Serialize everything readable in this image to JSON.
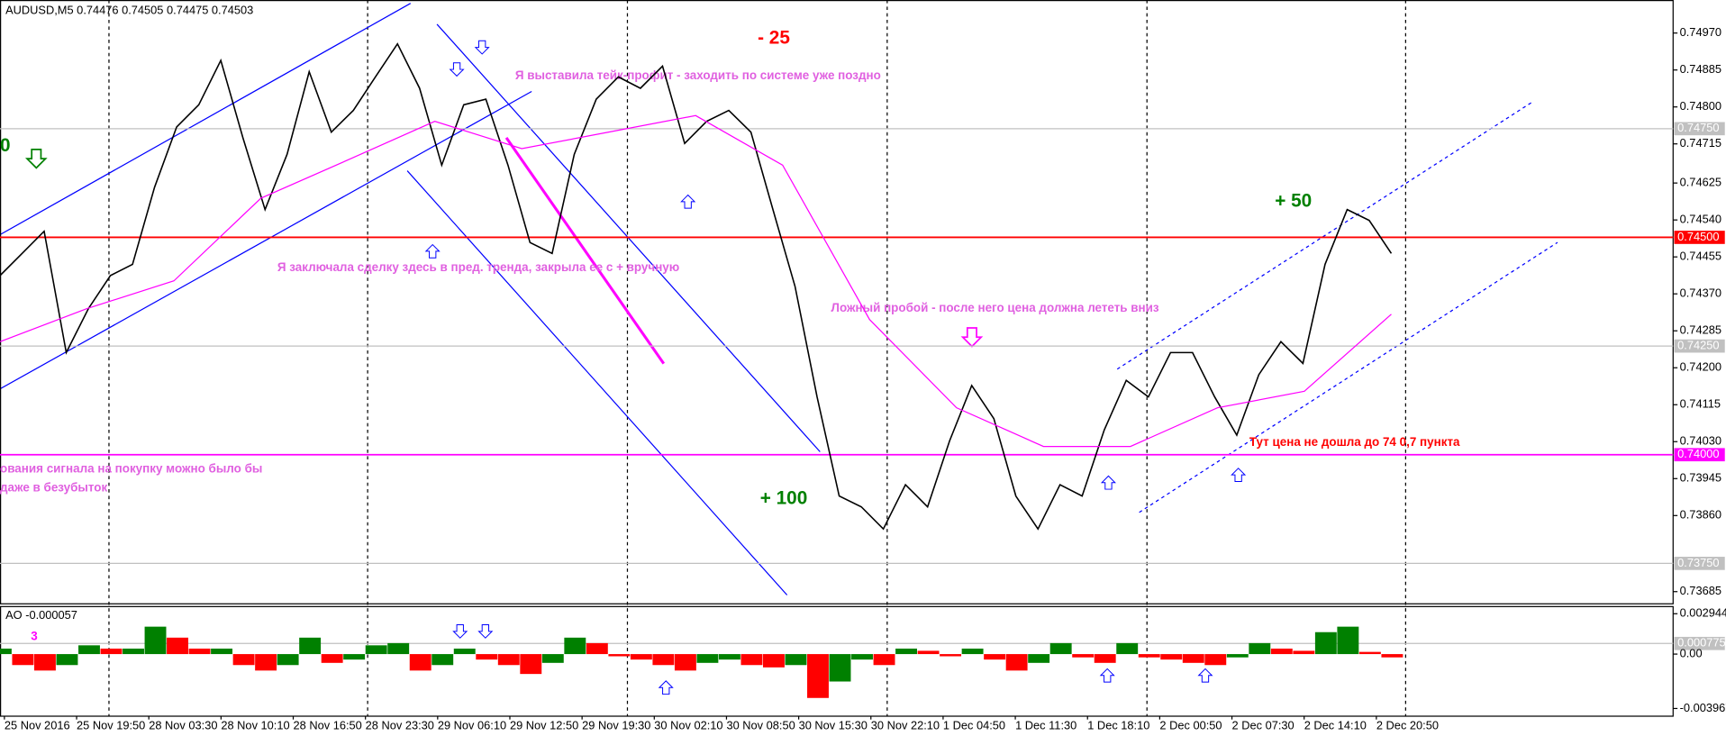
{
  "chart_data": [
    {
      "type": "line",
      "title": "AUDUSD,M5  0.74476 0.74505 0.74475 0.74503",
      "ylim": [
        0.73657,
        0.75046
      ],
      "yticks": [
        {
          "value": 0.7497,
          "label": "0.74970"
        },
        {
          "value": 0.74885,
          "label": "0.74885"
        },
        {
          "value": 0.748,
          "label": "0.74800"
        },
        {
          "value": 0.74715,
          "label": "0.74715"
        },
        {
          "value": 0.74625,
          "label": "0.74625"
        },
        {
          "value": 0.7454,
          "label": "0.74540"
        },
        {
          "value": 0.74455,
          "label": "0.74455"
        },
        {
          "value": 0.7437,
          "label": "0.74370"
        },
        {
          "value": 0.74285,
          "label": "0.74285"
        },
        {
          "value": 0.742,
          "label": "0.74200"
        },
        {
          "value": 0.74115,
          "label": "0.74115"
        },
        {
          "value": 0.7403,
          "label": "0.74030"
        },
        {
          "value": 0.73945,
          "label": "0.73945"
        },
        {
          "value": 0.7386,
          "label": "0.73860"
        },
        {
          "value": 0.73685,
          "label": "0.73685"
        }
      ],
      "levels": [
        {
          "value": 0.7475,
          "label": "0.74750",
          "color": "#c0c0c0",
          "text_color": "#ffffff"
        },
        {
          "value": 0.745,
          "label": "0.74500",
          "color": "#ff0000",
          "text_color": "#ffffff"
        },
        {
          "value": 0.7425,
          "label": "0.74250",
          "color": "#c0c0c0",
          "text_color": "#ffffff"
        },
        {
          "value": 0.74,
          "label": "0.74000",
          "color": "#ff00ff",
          "text_color": "#ffffff"
        },
        {
          "value": 0.7375,
          "label": "0.73750",
          "color": "#c0c0c0",
          "text_color": "#ffffff"
        }
      ],
      "series": [
        {
          "color": "#000000",
          "values": [
            0.74412,
            0.74463,
            0.74514,
            0.74235,
            0.74336,
            0.74412,
            0.74438,
            0.74615,
            0.74754,
            0.74805,
            0.74907,
            0.74729,
            0.74564,
            0.74691,
            0.74881,
            0.74742,
            0.74792,
            0.74869,
            0.74945,
            0.74843,
            0.74666,
            0.74805,
            0.74818,
            0.74666,
            0.74488,
            0.74463,
            0.74691,
            0.74818,
            0.74869,
            0.74843,
            0.74894,
            0.74716,
            0.74767,
            0.74792,
            0.74742,
            0.74564,
            0.74387,
            0.74133,
            0.73905,
            0.7388,
            0.73829,
            0.73931,
            0.7388,
            0.74032,
            0.74159,
            0.74083,
            0.73905,
            0.73829,
            0.73931,
            0.73905,
            0.74057,
            0.74171,
            0.74133,
            0.74235,
            0.74235,
            0.74133,
            0.74045,
            0.74184,
            0.7426,
            0.7421,
            0.74438,
            0.74564,
            0.74539,
            0.74463
          ]
        },
        {
          "color": "#ff00ff",
          "values": [
            0.7426,
            0.74336,
            0.744,
            0.7459,
            0.74678,
            0.74767,
            0.74704,
            0.74742,
            0.7478,
            0.74666,
            0.74311,
            0.74108,
            0.74019,
            0.74019,
            0.74108,
            0.74146,
            0.74323
          ]
        }
      ],
      "time_labels": [
        "25 Nov 2016",
        "25 Nov 19:50",
        "28 Nov 03:30",
        "28 Nov 10:10",
        "28 Nov 16:50",
        "28 Nov 23:30",
        "29 Nov 06:10",
        "29 Nov 12:50",
        "29 Nov 19:30",
        "30 Nov 02:10",
        "30 Nov 08:50",
        "30 Nov 15:30",
        "30 Nov 22:10",
        "1 Dec 04:50",
        "1 Dec 11:30",
        "1 Dec 18:10",
        "2 Dec 00:50",
        "2 Dec 07:30",
        "2 Dec 14:10",
        "2 Dec 20:50"
      ],
      "annotations": [
        "- 25",
        "+ 50",
        "+ 100",
        "0",
        "Я выставила тейк-профит - заходить по системе уже поздно",
        "Я заключала сделку здесь в пред. тренда, закрыла ее с + вручную",
        "Ложный пробой - после него цена должна лететь вниз",
        "ования сигнала на покупку можно было бы",
        "даже в безубыток",
        "Тут цена не дошла до 74 0,7 пункта"
      ]
    },
    {
      "type": "bar",
      "title": "AO -0.000057",
      "ylim": [
        -0.00453,
        0.003507
      ],
      "yticks": [
        0.002944,
        {
          "value": 0,
          "label": "0.00"
        },
        -0.003967
      ],
      "levels": [
        {
          "value": 0.000775,
          "label": "0.000775",
          "color": "#c0c0c0",
          "text_color": "#ffffff"
        }
      ],
      "up_color": "#008000",
      "down_color": "#ff0000",
      "annotation": "3",
      "values": [
        0.0004,
        -0.0008,
        -0.0012,
        -0.0008,
        0.00064,
        0.0004,
        0.0004,
        0.002,
        0.0012,
        0.0004,
        0.0004,
        -0.0008,
        -0.0012,
        -0.0008,
        0.0012,
        -0.00064,
        -0.0004,
        0.00064,
        0.0008,
        -0.0012,
        -0.0008,
        0.0004,
        -0.0004,
        -0.0008,
        -0.00145,
        -0.00064,
        0.0012,
        0.0008,
        -0.00016,
        -0.0004,
        -0.0008,
        -0.0012,
        -0.00064,
        -0.0004,
        -0.0008,
        -0.00097,
        -0.0008,
        -0.0032,
        -0.002,
        -0.0004,
        -0.0008,
        0.0004,
        0.00024,
        -0.00016,
        0.0004,
        -0.0004,
        -0.0012,
        -0.00064,
        0.0008,
        -0.00024,
        -0.00064,
        0.0008,
        -0.00024,
        -0.0004,
        -0.00064,
        -0.0008,
        -0.00024,
        0.0008,
        0.0004,
        0.00024,
        0.0016,
        0.002,
        0.00016,
        -0.00024
      ]
    }
  ]
}
